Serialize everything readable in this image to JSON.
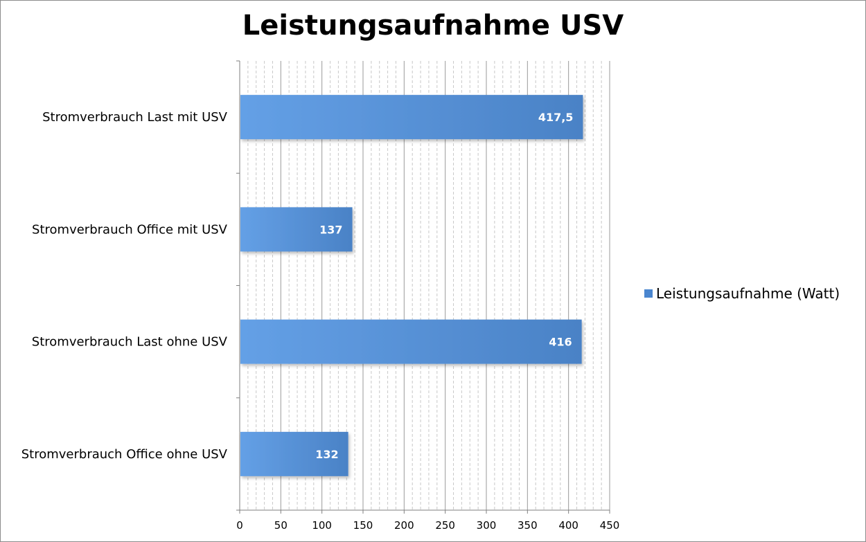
{
  "chart_data": {
    "type": "bar",
    "orientation": "horizontal",
    "title": "Leistungsaufnahme USV",
    "categories": [
      "Stromverbrauch Last mit USV",
      "Stromverbrauch Office mit USV",
      "Stromverbrauch Last ohne USV",
      "Stromverbrauch Office ohne USV"
    ],
    "series": [
      {
        "name": "Leistungsaufnahme (Watt)",
        "values": [
          417.5,
          137,
          416,
          132
        ],
        "data_labels": [
          "417,5",
          "137",
          "416",
          "132"
        ],
        "color": "#4a86cf"
      }
    ],
    "xlim": [
      0,
      450
    ],
    "x_ticks": [
      0,
      50,
      100,
      150,
      200,
      250,
      300,
      350,
      400,
      450
    ],
    "major_grid": true,
    "minor_grid": true,
    "legend_position": "right"
  }
}
